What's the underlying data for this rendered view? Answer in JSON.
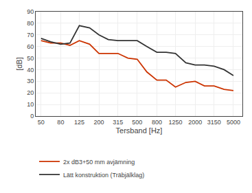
{
  "chart_data": {
    "type": "line",
    "x": [
      50,
      63,
      80,
      100,
      125,
      160,
      200,
      250,
      315,
      400,
      500,
      630,
      800,
      1000,
      1250,
      1600,
      2000,
      2500,
      3150,
      4000,
      5000
    ],
    "series": [
      {
        "name": "2x dB3+50 mm avjämning",
        "color": "#cc3300",
        "values": [
          65,
          63,
          63,
          61,
          65,
          62,
          54,
          54,
          54,
          50,
          49,
          38,
          31,
          31,
          25,
          29,
          30,
          26,
          26,
          23,
          22
        ]
      },
      {
        "name": "Lätt konstruktion (Träbjälklag)",
        "color": "#333333",
        "values": [
          67,
          64,
          62,
          63,
          78,
          76,
          70,
          66,
          65,
          65,
          65,
          60,
          55,
          55,
          54,
          46,
          44,
          44,
          43,
          40,
          35
        ]
      }
    ],
    "xlabel": "Tersband [Hz]",
    "ylabel": "[dB]",
    "log": "x",
    "xlim": [
      44,
      6200
    ],
    "xticks": [
      50,
      80,
      125,
      200,
      315,
      500,
      800,
      1250,
      2000,
      3150,
      5000
    ],
    "ylim": [
      0,
      90
    ],
    "yticks": [
      0,
      10,
      20,
      30,
      40,
      50,
      60,
      70,
      80,
      90
    ],
    "grid": true,
    "legend": "bottom left"
  }
}
